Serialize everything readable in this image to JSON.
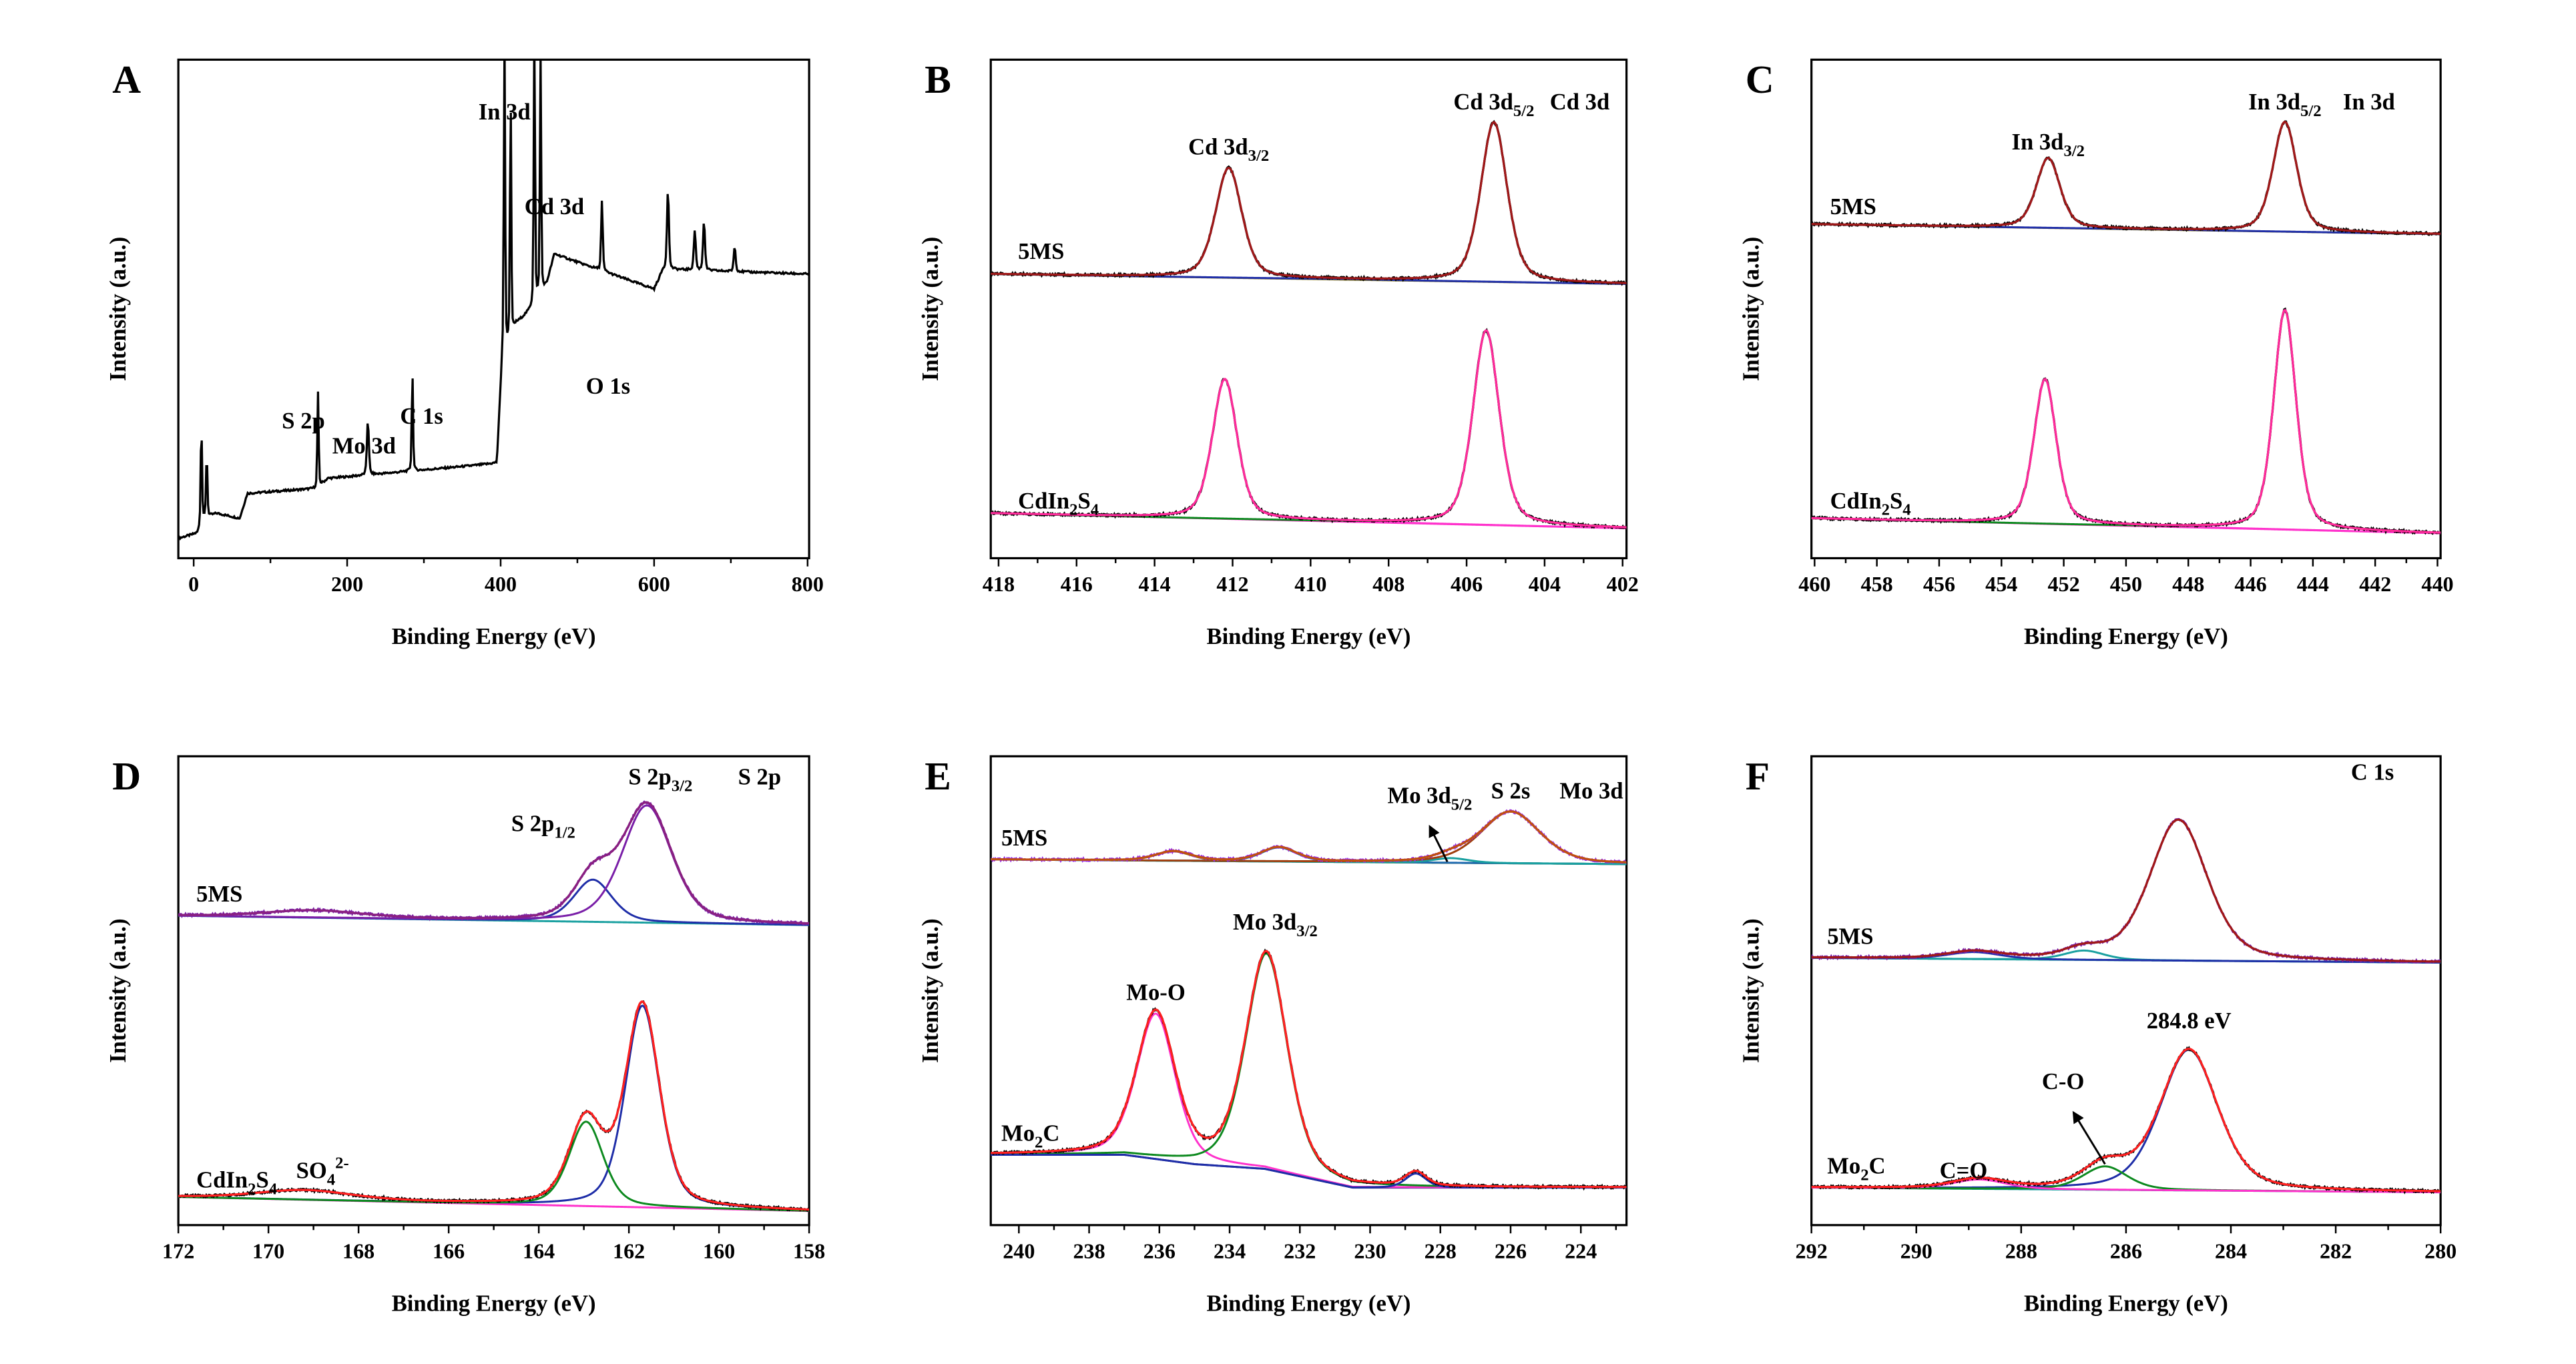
{
  "chart_data": [
    {
      "type": "line",
      "panel": "A",
      "title": "",
      "xlabel": "Binding Energy (eV)",
      "ylabel": "Intensity (a.u.)",
      "xlim": [
        -20,
        802
      ],
      "ylim": [
        0,
        100
      ],
      "xticks": [
        0,
        200,
        400,
        600,
        800
      ],
      "minor": 100,
      "spectra": [
        {
          "name": "survey",
          "label": "",
          "baseline": [
            [
              -20,
              4
            ],
            [
              5,
              5
            ],
            [
              12,
              8
            ],
            [
              30,
              9
            ],
            [
              60,
              8
            ],
            [
              70,
              13
            ],
            [
              160,
              14
            ],
            [
              175,
              16
            ],
            [
              395,
              19
            ],
            [
              402,
              40
            ],
            [
              420,
              47
            ],
            [
              440,
              50
            ],
            [
              460,
              55
            ],
            [
              470,
              61
            ],
            [
              600,
              54
            ],
            [
              612,
              58
            ],
            [
              800,
              57
            ]
          ],
          "peaks": [
            [
              10,
              20,
              2
            ],
            [
              17,
              13,
              2
            ],
            [
              162,
              19,
              2
            ],
            [
              227,
              11,
              3
            ],
            [
              285,
              20,
              2
            ],
            [
              405,
              64,
              2
            ],
            [
              413,
              48,
              2
            ],
            [
              444,
              56,
              2
            ],
            [
              452,
              48,
              2
            ],
            [
              532,
              14,
              2.5
            ],
            [
              618,
              16,
              3
            ],
            [
              653,
              8,
              3
            ],
            [
              665,
              10,
              3
            ],
            [
              705,
              5,
              3
            ]
          ],
          "components": [],
          "raw_color": "#000000",
          "envelope_color": ""
        }
      ],
      "annotations": [
        {
          "text": "In 3d",
          "x": 405,
          "y": 88
        },
        {
          "text": "Cd 3d",
          "x": 470,
          "y": 69
        },
        {
          "text": "O 1s",
          "x": 540,
          "y": 33
        },
        {
          "text": "S 2p",
          "x": 143,
          "y": 26
        },
        {
          "text": "Mo 3d",
          "x": 222,
          "y": 21
        },
        {
          "text": "C 1s",
          "x": 297,
          "y": 27
        }
      ]
    },
    {
      "type": "line",
      "panel": "B",
      "xlabel": "Binding Energy (eV)",
      "ylabel": "Intensity (a.u.)",
      "xlim": [
        418.2,
        401.9
      ],
      "ylim": [
        0,
        100
      ],
      "xticks": [
        418,
        416,
        414,
        412,
        410,
        408,
        406,
        404,
        402
      ],
      "minor": 1,
      "spectra": [
        {
          "name": "5MS",
          "label": "5MS",
          "label_x": 417.5,
          "label_y": 60,
          "baseline": [
            [
              418.2,
              57
            ],
            [
              401.9,
              55
            ]
          ],
          "peaks": [
            [
              412.1,
              22,
              0.8
            ],
            [
              405.3,
              32,
              0.8
            ]
          ],
          "components": [
            {
              "peak": 0,
              "color": "#1f2ea8"
            },
            {
              "peak": 1,
              "color": "#1f2ea8"
            }
          ],
          "raw_color": "#000000",
          "envelope_color": "#a01818",
          "bg_color": "#8a7a10"
        },
        {
          "name": "CdIn2S4",
          "label": "CdIn",
          "label_sub": "2",
          "label_tail": "S",
          "label_sub2": "4",
          "label_x": 417.5,
          "label_y": 10,
          "baseline": [
            [
              418.2,
              9
            ],
            [
              401.9,
              6
            ]
          ],
          "peaks": [
            [
              412.2,
              28,
              0.75
            ],
            [
              405.5,
              39,
              0.8
            ]
          ],
          "components": [
            {
              "peak": 0,
              "color": "#ff33cc"
            },
            {
              "peak": 1,
              "color": "#0e8a20"
            }
          ],
          "raw_color": "#000000",
          "envelope_color": "#ff2a9a",
          "bg_color": "#ff33cc"
        }
      ],
      "annotations": [
        {
          "text": "Cd 3d",
          "sub": "3/2",
          "x": 412.1,
          "y": 81
        },
        {
          "text": "Cd 3d",
          "sub": "5/2",
          "x": 405.3,
          "y": 90
        },
        {
          "text": "Cd 3d",
          "x": 403.1,
          "y": 90
        }
      ]
    },
    {
      "type": "line",
      "panel": "C",
      "xlabel": "Binding Energy (eV)",
      "ylabel": "Intensity (a.u.)",
      "xlim": [
        460.1,
        439.9
      ],
      "ylim": [
        0,
        100
      ],
      "xticks": [
        460,
        458,
        456,
        454,
        452,
        450,
        448,
        446,
        444,
        442,
        440
      ],
      "minor": 1,
      "spectra": [
        {
          "name": "5MS",
          "label": "5MS",
          "label_x": 459.5,
          "label_y": 69,
          "baseline": [
            [
              460.1,
              67
            ],
            [
              439.9,
              65
            ]
          ],
          "peaks": [
            [
              452.5,
              14,
              0.9
            ],
            [
              444.9,
              22,
              0.9
            ]
          ],
          "components": [
            {
              "peak": 0,
              "color": "#1f2ea8"
            },
            {
              "peak": 1,
              "color": "#1f2ea8"
            }
          ],
          "raw_color": "#000000",
          "envelope_color": "#a01818",
          "bg_color": "#8a7a10"
        },
        {
          "name": "CdIn2S4",
          "label": "CdIn",
          "label_sub": "2",
          "label_tail": "S",
          "label_sub2": "4",
          "label_x": 459.5,
          "label_y": 10,
          "baseline": [
            [
              460.1,
              8
            ],
            [
              439.9,
              5
            ]
          ],
          "peaks": [
            [
              452.6,
              29,
              0.85
            ],
            [
              444.9,
              44,
              0.85
            ]
          ],
          "components": [
            {
              "peak": 0,
              "color": "#ff33cc"
            },
            {
              "peak": 1,
              "color": "#0e8a20"
            }
          ],
          "raw_color": "#000000",
          "envelope_color": "#ff2a9a",
          "bg_color": "#ff33cc"
        }
      ],
      "annotations": [
        {
          "text": "In 3d",
          "sub": "3/2",
          "x": 452.5,
          "y": 82
        },
        {
          "text": "In 3d",
          "sub": "5/2",
          "x": 444.9,
          "y": 90
        },
        {
          "text": "In 3d",
          "x": 442.2,
          "y": 90
        }
      ]
    },
    {
      "type": "line",
      "panel": "D",
      "xlabel": "Binding Energy (eV)",
      "ylabel": "Intensity (a.u.)",
      "xlim": [
        172,
        158
      ],
      "ylim": [
        0,
        100
      ],
      "xticks": [
        172,
        170,
        168,
        166,
        164,
        162,
        160,
        158
      ],
      "minor": 1,
      "spectra": [
        {
          "name": "5MS",
          "label": "5MS",
          "label_x": 171.6,
          "label_y": 69,
          "baseline": [
            [
              172,
              66
            ],
            [
              158,
              64
            ]
          ],
          "peaks": [
            [
              161.6,
              25,
              1.3
            ],
            [
              162.8,
              9,
              1.0
            ],
            [
              169,
              1.5,
              2.5
            ]
          ],
          "components": [
            {
              "peak": 1,
              "color": "#1f2ea8"
            },
            {
              "peak": 0,
              "color": "#7a1fa8"
            }
          ],
          "raw_color": "#7a1fa8",
          "envelope_color": "#8a2080",
          "bg_color": "#1aa0a0"
        },
        {
          "name": "CdIn2S4",
          "label": "CdIn",
          "label_sub": "2",
          "label_tail": "S",
          "label_sub2": "4",
          "label_x": 171.6,
          "label_y": 8,
          "baseline": [
            [
              172,
              6
            ],
            [
              158,
              3
            ]
          ],
          "peaks": [
            [
              161.7,
              43,
              0.9
            ],
            [
              162.95,
              18,
              0.9
            ],
            [
              169.2,
              2,
              2.5
            ]
          ],
          "components": [
            {
              "peak": 0,
              "color": "#1f2ea8"
            },
            {
              "peak": 1,
              "color": "#0e8a20"
            }
          ],
          "raw_color": "#000000",
          "envelope_color": "#ff2020",
          "bg_color": "#ff33cc"
        }
      ],
      "annotations": [
        {
          "text": "S 2p",
          "sub": "1/2",
          "x": 163.9,
          "y": 84
        },
        {
          "text": "S 2p",
          "sub": "3/2",
          "x": 161.3,
          "y": 94
        },
        {
          "text": "S 2p",
          "x": 159.1,
          "y": 94
        },
        {
          "text": "SO",
          "sub": "4",
          "sup": "2-",
          "x": 168.8,
          "y": 10
        }
      ]
    },
    {
      "type": "line",
      "panel": "E",
      "xlabel": "Binding Energy (eV)",
      "ylabel": "Intensity (a.u.)",
      "xlim": [
        240.8,
        222.7
      ],
      "ylim": [
        0,
        100
      ],
      "xticks": [
        240,
        238,
        236,
        234,
        232,
        230,
        228,
        226,
        224
      ],
      "minor": 1,
      "spectra": [
        {
          "name": "5MS",
          "label": "5MS",
          "label_x": 240.5,
          "label_y": 81,
          "baseline": [
            [
              240.8,
              78
            ],
            [
              222.7,
              77
            ]
          ],
          "peaks": [
            [
              235.6,
              2,
              1.2
            ],
            [
              232.6,
              3,
              1.2
            ],
            [
              227.7,
              1,
              1.2
            ],
            [
              226,
              11,
              2.0
            ]
          ],
          "components": [
            {
              "peak": 0,
              "color": "#8a7a10"
            },
            {
              "peak": 1,
              "color": "#1f6ab0"
            },
            {
              "peak": 2,
              "color": "#1aa0a0"
            },
            {
              "peak": 3,
              "color": "#a04010"
            }
          ],
          "raw_color": "#9a30e0",
          "envelope_color": "#c05010",
          "bg_color": "#1aa0a0"
        },
        {
          "name": "Mo2C",
          "label": "Mo",
          "label_sub": "2",
          "label_tail": "C",
          "label_x": 240.5,
          "label_y": 18,
          "baseline": [
            [
              240.8,
              15
            ],
            [
              237,
              15
            ],
            [
              235,
              13
            ],
            [
              233,
              12
            ],
            [
              230.5,
              8
            ],
            [
              222.7,
              8
            ]
          ],
          "peaks": [
            [
              236.1,
              31,
              1.3
            ],
            [
              232.95,
              46,
              1.4
            ],
            [
              228.7,
              3,
              0.7
            ]
          ],
          "components": [
            {
              "peak": 0,
              "color": "#ff33cc"
            },
            {
              "peak": 1,
              "color": "#0e8a20"
            },
            {
              "peak": 2,
              "color": "#1f2ea8"
            }
          ],
          "raw_color": "#000000",
          "envelope_color": "#ff2020",
          "bg_color": "#1f2a80"
        }
      ],
      "annotations": [
        {
          "text": "Mo 3d",
          "sub": "5/2",
          "x": 228.3,
          "y": 90
        },
        {
          "text": "S 2s",
          "x": 226,
          "y": 91
        },
        {
          "text": "Mo 3d",
          "x": 223.7,
          "y": 91
        },
        {
          "text": "Mo 3d",
          "sub": "3/2",
          "x": 232.7,
          "y": 63
        },
        {
          "text": "Mo-O",
          "x": 236.1,
          "y": 48
        }
      ]
    },
    {
      "type": "line",
      "panel": "F",
      "xlabel": "Binding Energy (eV)",
      "ylabel": "Intensity (a.u.)",
      "xlim": [
        292,
        280
      ],
      "ylim": [
        0,
        100
      ],
      "xticks": [
        292,
        290,
        288,
        286,
        284,
        282,
        280
      ],
      "minor": 1,
      "spectra": [
        {
          "name": "5MS",
          "label": "5MS",
          "label_x": 291.7,
          "label_y": 60,
          "baseline": [
            [
              292,
              57
            ],
            [
              280,
              56
            ]
          ],
          "peaks": [
            [
              285,
              30,
              1.3
            ],
            [
              286.8,
              2,
              0.9
            ],
            [
              288.9,
              1.5,
              1.2
            ]
          ],
          "components": [
            {
              "peak": 1,
              "color": "#1aa0a0"
            },
            {
              "peak": 2,
              "color": "#1f2ea8"
            }
          ],
          "raw_color": "#7a1fa8",
          "envelope_color": "#a01818",
          "bg_color": "#1aa0a0"
        },
        {
          "name": "Mo2C",
          "label": "Mo",
          "label_sub": "2",
          "label_tail": "C",
          "label_x": 291.7,
          "label_y": 11,
          "baseline": [
            [
              292,
              8
            ],
            [
              280,
              7
            ]
          ],
          "peaks": [
            [
              284.8,
              30,
              1.3
            ],
            [
              286.4,
              5,
              1.0
            ],
            [
              288.8,
              2,
              1.2
            ]
          ],
          "components": [
            {
              "peak": 0,
              "color": "#1f2ea8"
            },
            {
              "peak": 1,
              "color": "#0e8a20"
            },
            {
              "peak": 2,
              "color": "#ff33cc"
            }
          ],
          "raw_color": "#000000",
          "envelope_color": "#ff2020",
          "bg_color": "#1aa0a0"
        }
      ],
      "annotations": [
        {
          "text": "C 1s",
          "x": 281.3,
          "y": 95
        },
        {
          "text": "284.8 eV",
          "x": 284.8,
          "y": 42
        },
        {
          "text": "C-O",
          "x": 287.2,
          "y": 29
        },
        {
          "text": "C=O",
          "x": 289.1,
          "y": 10
        }
      ]
    }
  ]
}
